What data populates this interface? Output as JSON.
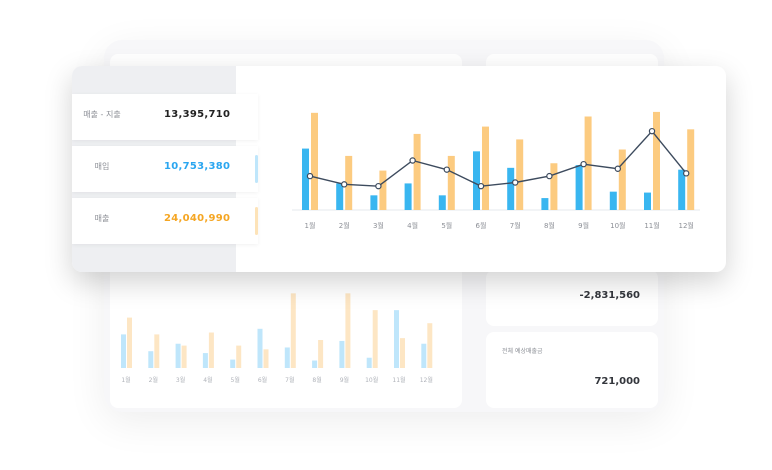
{
  "summary": {
    "items": [
      {
        "label": "매출 - 지출",
        "value": "13,395,710",
        "color": "#222222"
      },
      {
        "label": "매입",
        "value": "10,753,380",
        "color": "#2aa6f0"
      },
      {
        "label": "매출",
        "value": "24,040,990",
        "color": "#f5a623"
      }
    ]
  },
  "secondary": {
    "balance_value": "-2,831,560",
    "expected_label": "전체 예상매출금",
    "expected_value": "721,000"
  },
  "colors": {
    "blue": "#39b6f0",
    "orange": "#fccb80",
    "line": "#3d4b5e"
  },
  "chart_data": {
    "type": "bar",
    "categories": [
      "1월",
      "2월",
      "3월",
      "4월",
      "5월",
      "6월",
      "7월",
      "8월",
      "9월",
      "10월",
      "11월",
      "12월"
    ],
    "series": [
      {
        "name": "매입",
        "kind": "bar",
        "values": [
          67,
          29,
          16,
          29,
          16,
          64,
          46,
          13,
          49,
          20,
          19,
          44
        ]
      },
      {
        "name": "매출",
        "kind": "bar",
        "values": [
          106,
          59,
          43,
          83,
          59,
          91,
          77,
          51,
          102,
          66,
          107,
          88
        ]
      },
      {
        "name": "매출 - 지출",
        "kind": "line",
        "values": [
          37,
          28,
          26,
          54,
          44,
          26,
          30,
          37,
          50,
          45,
          86,
          40
        ]
      }
    ],
    "ylim": [
      0,
      120
    ],
    "xlabel": "",
    "ylabel": "",
    "title": ""
  },
  "back_chart_data": {
    "type": "bar",
    "categories": [
      "1월",
      "2월",
      "3월",
      "4월",
      "5월",
      "6월",
      "7월",
      "8월",
      "9월",
      "10월",
      "11월",
      "12월"
    ],
    "series": [
      {
        "name": "매입",
        "values": [
          36,
          18,
          26,
          16,
          9,
          42,
          22,
          8,
          29,
          11,
          62,
          26
        ]
      },
      {
        "name": "매출",
        "values": [
          54,
          36,
          24,
          38,
          24,
          20,
          80,
          30,
          80,
          62,
          32,
          48
        ]
      }
    ],
    "ylim": [
      0,
      90
    ]
  }
}
